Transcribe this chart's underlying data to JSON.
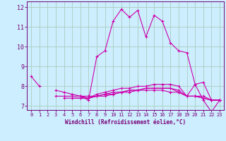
{
  "xlabel": "Windchill (Refroidissement éolien,°C)",
  "background_color": "#cceeff",
  "grid_color": "#aaccbb",
  "line_color": "#cc00aa",
  "xlim": [
    -0.5,
    23.5
  ],
  "ylim": [
    6.8,
    12.3
  ],
  "yticks": [
    7,
    8,
    9,
    10,
    11,
    12
  ],
  "xticks": [
    0,
    1,
    2,
    3,
    4,
    5,
    6,
    7,
    8,
    9,
    10,
    11,
    12,
    13,
    14,
    15,
    16,
    17,
    18,
    19,
    20,
    21,
    22,
    23
  ],
  "series": [
    [
      8.5,
      8.0,
      null,
      7.5,
      7.5,
      7.5,
      7.5,
      7.3,
      9.5,
      9.8,
      11.3,
      11.9,
      11.5,
      11.85,
      10.5,
      11.6,
      11.3,
      10.2,
      9.8,
      9.7,
      8.1,
      7.3,
      6.7,
      7.3
    ],
    [
      null,
      null,
      null,
      7.8,
      7.7,
      7.6,
      7.5,
      7.4,
      7.6,
      7.7,
      7.8,
      7.9,
      7.9,
      8.0,
      8.0,
      8.1,
      8.1,
      8.1,
      8.0,
      7.5,
      8.1,
      8.2,
      7.3,
      7.3
    ],
    [
      null,
      null,
      null,
      null,
      7.4,
      7.4,
      7.4,
      7.4,
      7.5,
      7.5,
      7.6,
      7.7,
      7.7,
      7.8,
      7.8,
      7.8,
      7.8,
      7.7,
      7.7,
      7.5,
      7.5,
      7.5,
      7.3,
      7.3
    ],
    [
      null,
      null,
      null,
      null,
      null,
      7.4,
      7.4,
      7.4,
      7.5,
      7.6,
      7.6,
      7.7,
      7.8,
      7.8,
      7.9,
      7.9,
      7.9,
      7.9,
      7.7,
      7.5,
      7.5,
      7.4,
      7.3,
      7.3
    ],
    [
      null,
      null,
      null,
      null,
      null,
      null,
      7.5,
      7.5,
      7.5,
      7.6,
      7.7,
      7.7,
      7.8,
      7.8,
      7.9,
      7.9,
      7.9,
      7.9,
      7.8,
      7.5,
      7.5,
      7.4,
      7.3,
      7.3
    ]
  ]
}
